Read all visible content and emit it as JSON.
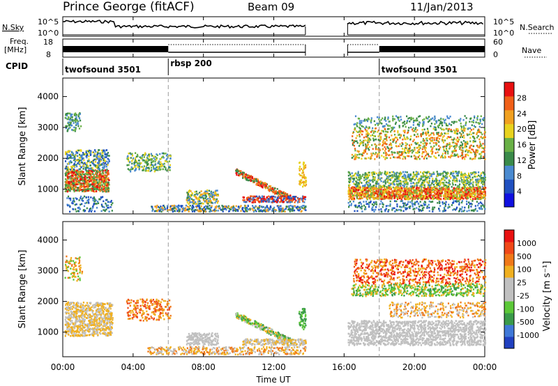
{
  "header": {
    "title": "Prince George (fitACF)",
    "beam": "Beam 09",
    "date": "11/Jan/2013"
  },
  "noise_panel": {
    "left_label": "N.Sky",
    "right_label": "N.Search",
    "left_ticks": [
      "10^5",
      "10^0"
    ],
    "right_ticks": [
      "10^5",
      "10^0"
    ]
  },
  "freq_panel": {
    "left_label_1": "Freq.",
    "left_label_2": "[MHz]",
    "right_label": "Nave",
    "left_ticks": [
      "18",
      "8"
    ],
    "right_ticks": [
      "60",
      "0"
    ]
  },
  "cpid": {
    "label": "CPID",
    "segments": [
      {
        "name": "twofsound 3501",
        "start_hour": 0
      },
      {
        "name": "rbsp 200",
        "start_hour": 6
      },
      {
        "name": "twofsound 3501",
        "start_hour": 18
      }
    ]
  },
  "colors": {
    "power_scale": [
      "#1010e0",
      "#2050c0",
      "#4a8ad0",
      "#3a8a4a",
      "#69b046",
      "#e8d21e",
      "#f0a020",
      "#f06018",
      "#e81010"
    ],
    "velocity_scale": [
      "#2040c0",
      "#3f78d8",
      "#3a9a4a",
      "#5cc838",
      "#c0c0c0",
      "#c0c0c0",
      "#f0b020",
      "#f07818",
      "#f04818",
      "#e81010"
    ]
  },
  "chart_data": [
    {
      "type": "heatmap",
      "name": "power",
      "ylabel": "Slant Range [km]",
      "yticks": [
        "1000",
        "2000",
        "3000",
        "4000"
      ],
      "ylim": [
        200,
        4600
      ],
      "colorbar_label": "Power [dB]",
      "colorbar_ticks": [
        "4",
        "8",
        "12",
        "16",
        "20",
        "24",
        "28"
      ],
      "colorbar_range": [
        0,
        32
      ],
      "grid": false
    },
    {
      "type": "heatmap",
      "name": "velocity",
      "ylabel": "Slant Range [km]",
      "yticks": [
        "1000",
        "2000",
        "3000",
        "4000"
      ],
      "ylim": [
        200,
        4600
      ],
      "colorbar_label": "Velocity [m s⁻¹]",
      "colorbar_ticks": [
        "1000",
        "500",
        "100",
        "25",
        "-25",
        "-100",
        "-500",
        "-1000"
      ],
      "grid": false
    }
  ],
  "x_axis": {
    "label": "Time UT",
    "ticks": [
      "00:00",
      "04:00",
      "08:00",
      "12:00",
      "16:00",
      "20:00",
      "00:00"
    ]
  }
}
